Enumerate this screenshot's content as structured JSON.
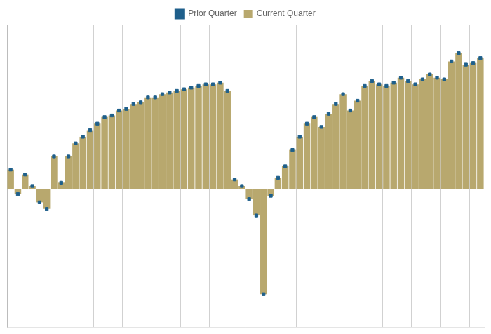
{
  "chart_data": {
    "type": "bar",
    "categories": [
      null,
      null,
      null,
      null,
      null,
      null,
      null,
      null,
      null,
      null,
      null,
      null,
      null,
      null,
      null,
      null,
      null,
      null,
      null,
      null,
      null,
      null,
      null,
      null,
      null,
      null,
      null,
      null,
      null,
      null,
      null,
      null,
      null,
      null,
      null,
      null,
      null,
      null,
      null,
      null,
      null,
      null,
      null,
      null,
      null,
      null,
      null,
      null,
      null,
      null,
      null,
      null,
      null,
      null,
      null,
      null,
      null,
      null,
      null,
      null,
      null,
      null,
      null,
      null,
      null,
      null
    ],
    "series": [
      {
        "name": "Prior Quarter",
        "color": "#1e5f8b",
        "type": "scatter",
        "marker": "square",
        "values": [
          6.0,
          -1.5,
          4.5,
          1.0,
          -4.0,
          -6.0,
          10.0,
          2.0,
          10.0,
          14.0,
          16.0,
          18.0,
          20.0,
          22.0,
          22.5,
          24.0,
          24.5,
          26.0,
          26.5,
          28.0,
          28.0,
          29.0,
          29.5,
          30.0,
          30.5,
          31.0,
          31.5,
          32.0,
          32.0,
          32.5,
          30.0,
          3.0,
          1.0,
          -3.0,
          -8.0,
          -32.0,
          -2.0,
          3.5,
          7.0,
          12.0,
          16.0,
          20.0,
          22.0,
          19.0,
          23.0,
          26.0,
          29.0,
          24.0,
          27.0,
          31.5,
          33.0,
          32.0,
          31.5,
          32.5,
          34.0,
          33.0,
          32.0,
          33.5,
          35.0,
          34.0,
          33.5,
          39.0,
          41.5,
          38.0,
          38.5,
          40.0
        ]
      },
      {
        "name": "Current Quarter",
        "color": "#b8a86e",
        "type": "bar",
        "values": [
          6.0,
          -1.5,
          4.5,
          1.0,
          -4.0,
          -6.0,
          10.0,
          2.0,
          10.0,
          14.0,
          16.0,
          18.0,
          20.0,
          22.0,
          22.5,
          24.0,
          24.5,
          26.0,
          26.5,
          28.0,
          28.0,
          29.0,
          29.5,
          30.0,
          30.5,
          31.0,
          31.5,
          32.0,
          32.0,
          32.5,
          30.0,
          3.0,
          1.0,
          -3.0,
          -8.0,
          -32.0,
          -2.0,
          3.5,
          7.0,
          12.0,
          16.0,
          20.0,
          22.0,
          19.0,
          23.0,
          26.0,
          29.0,
          24.0,
          27.0,
          31.5,
          33.0,
          32.0,
          31.5,
          32.5,
          34.0,
          33.0,
          32.0,
          33.5,
          35.0,
          34.0,
          33.5,
          39.0,
          41.5,
          38.0,
          38.5,
          40.0
        ]
      }
    ],
    "ylim": [
      -42,
      50
    ],
    "grid": "x",
    "legend": "top",
    "tick_labels": false
  }
}
